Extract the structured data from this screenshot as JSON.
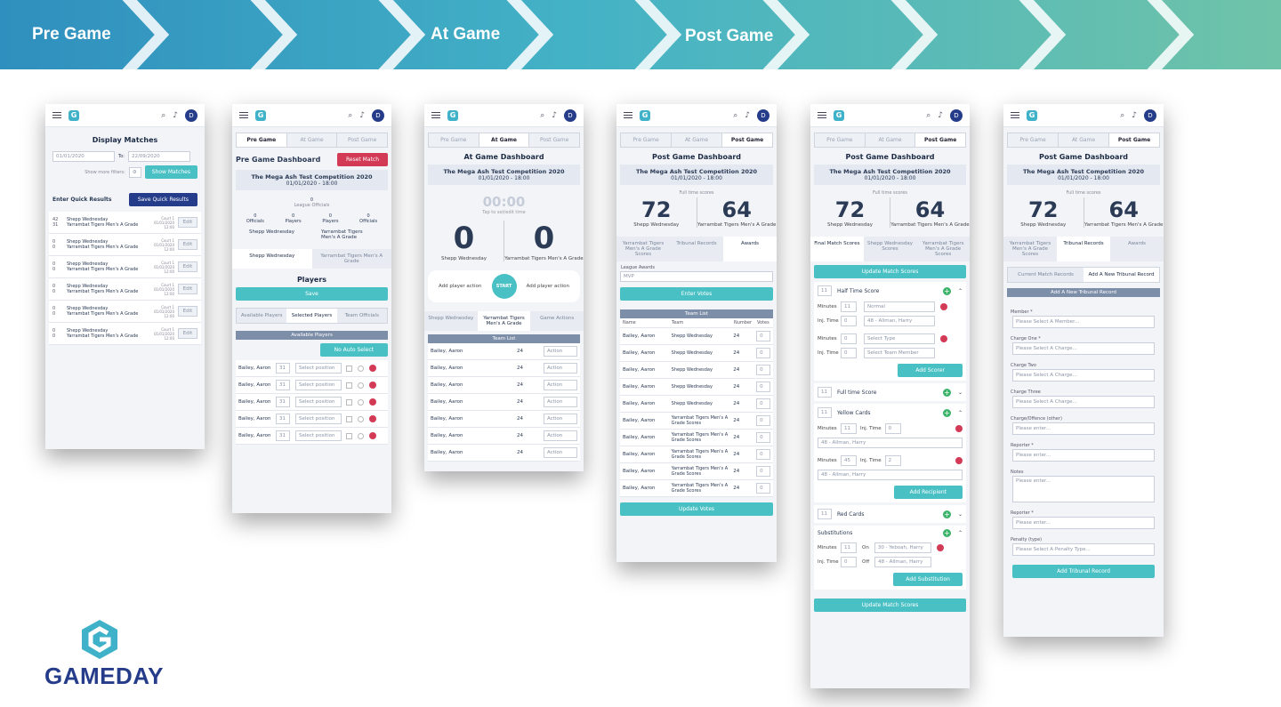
{
  "stages": [
    "Pre Game",
    "At Game",
    "Post Game"
  ],
  "brand": {
    "name": "GAMEDAY"
  },
  "common": {
    "avatar": "D",
    "tab_pre": "Pre Game",
    "tab_at": "At Game",
    "tab_post": "Post Game",
    "comp": "The Mega Ash Test Competition 2020",
    "date": "01/01/2020 - 18:00",
    "team_a": "Shepp Wednesday",
    "team_b": "Yarrambat Tigers Men's A Grade",
    "score_a": "72",
    "score_b": "64",
    "full_time": "Full time scores",
    "player": "Bailey, Aaron"
  },
  "p1": {
    "title": "Display Matches",
    "from": "01/01/2020",
    "to_lbl": "To:",
    "to": "22/09/2020",
    "more": "Show more filters:",
    "show": "Show Matches",
    "eqr": "Enter Quick Results",
    "save": "Save Quick Results",
    "court": "Court 1",
    "mdate": "01/01/2020",
    "mtime": "12:00",
    "edit": "Edit",
    "s1": "42",
    "s2": "31",
    "z": "0"
  },
  "p2": {
    "title": "Pre Game Dashboard",
    "reset": "Reset Match",
    "zero": "0",
    "league_off": "League Officials",
    "officials": "Officials",
    "players": "Players",
    "team_b_short": "Yarrambat Tigers Men's A Grade",
    "heading": "Players",
    "save": "Save",
    "sub_avail": "Available Players",
    "sub_sel": "Selected Players",
    "sub_off": "Team Officials",
    "bar": "Available Players",
    "noauto": "No Auto Select",
    "num": "31",
    "sel": "Select position"
  },
  "p3": {
    "title": "At Game Dashboard",
    "timer": "00:00",
    "tap": "Tap to set/edit time",
    "zero": "0",
    "add": "Add player action",
    "start": "START",
    "tab_ga": "Game Actions",
    "bar": "Team List",
    "num": "24",
    "action": "Action"
  },
  "p4": {
    "title": "Post Game Dashboard",
    "tab_scores": "Yarrambat Tigers Men's A Grade Scores",
    "tab_trib": "Tribunal Records",
    "tab_awards": "Awards",
    "la": "League Awards",
    "mvp": "MVP",
    "enter": "Enter Votes",
    "bar": "Team List",
    "h_name": "Name",
    "h_team": "Team",
    "h_num": "Number",
    "h_votes": "Votes",
    "num": "24",
    "v": "0",
    "ys": "Yarrambat Tigers Men's A Grade Scores",
    "upd": "Update Votes"
  },
  "p5": {
    "title": "Post Game Dashboard",
    "t1": "Final Match Scores",
    "t2": "Shepp Wednesday Scores",
    "t3": "Yarrambat Tigers Men's A Grade Scores",
    "upd": "Update Match Scores",
    "half": "Half Time Score",
    "full": "Full time Score",
    "yellow": "Yellow Cards",
    "red": "Red Cards",
    "subs": "Substitutions",
    "eleven": "11",
    "minutes": "Minutes",
    "injt": "Inj. Time",
    "normal": "Normal",
    "person": "48 - Allman, Harry",
    "seltype": "Select Type",
    "selmem": "Select Team Member",
    "addsc": "Add Scorer",
    "addrec": "Add Recipient",
    "addsub": "Add Substitution",
    "on": "On",
    "off": "Off",
    "onp": "30 - Yeboah, Harry",
    "forty": "45",
    "two": "2",
    "zero": "0"
  },
  "p6": {
    "title": "Post Game Dashboard",
    "t1": "Yarrambat Tigers Men's A Grade Scores",
    "t2": "Tribunal Records",
    "t3": "Awards",
    "sub1": "Current Match Records",
    "sub2": "Add A New Tribunal Record",
    "bar": "Add A New Tribunal Record",
    "member": "Member *",
    "pmem": "Please Select A Member...",
    "c1": "Charge One *",
    "c2": "Charge Two",
    "c3": "Charge Three",
    "pch": "Please Select A Charge...",
    "other": "Charge/Offence (other)",
    "pe": "Please enter...",
    "rep": "Reporter *",
    "notes": "Notes",
    "pen": "Penalty (type)",
    "ppen": "Please Select A Penalty Type...",
    "addtrib": "Add Tribunal Record"
  }
}
